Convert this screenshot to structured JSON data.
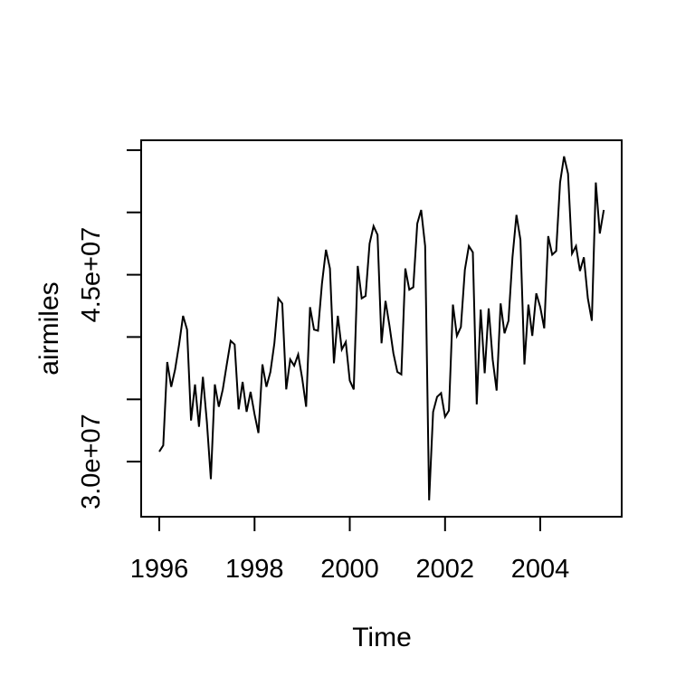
{
  "chart_data": {
    "type": "line",
    "title": "",
    "xlabel": "Time",
    "ylabel": "airmiles",
    "series_name": "airmiles",
    "frequency": "monthly",
    "time_start": "1996-01",
    "time_end": "2005-05",
    "x_start_year": 1996,
    "xlim": [
      1995.62,
      2005.71
    ],
    "ylim": [
      25580000,
      55790000
    ],
    "x_tick_values": [
      1996,
      1998,
      2000,
      2002,
      2004
    ],
    "x_tick_labels": [
      "1996",
      "1998",
      "2000",
      "2002",
      "2004"
    ],
    "y_tick_values": [
      30000000,
      35000000,
      40000000,
      45000000,
      50000000,
      55000000
    ],
    "y_labeled_ticks": [
      {
        "value": 45000000,
        "label": "4.5e+07"
      },
      {
        "value": 30000000,
        "label": "3.0e+07"
      }
    ],
    "grid": false,
    "legend": "none",
    "line_color": "#000000",
    "background": "#ffffff",
    "values": [
      30800000,
      31300000,
      38000000,
      36000000,
      37400000,
      39400000,
      41700000,
      40600000,
      33300000,
      36200000,
      32800000,
      36800000,
      33200000,
      28600000,
      36200000,
      34400000,
      35800000,
      37800000,
      39700000,
      39400000,
      34200000,
      36400000,
      34000000,
      35600000,
      33800000,
      32300000,
      37800000,
      36000000,
      37200000,
      39500000,
      43100000,
      42700000,
      35800000,
      38200000,
      37700000,
      38600000,
      36700000,
      34400000,
      42400000,
      40600000,
      40500000,
      44300000,
      47000000,
      45500000,
      37900000,
      41700000,
      39000000,
      39600000,
      36500000,
      35800000,
      45700000,
      43100000,
      43300000,
      47500000,
      48900000,
      48200000,
      39500000,
      42900000,
      40900000,
      38700000,
      37200000,
      37000000,
      45500000,
      43800000,
      44000000,
      49100000,
      50200000,
      47300000,
      26900000,
      34000000,
      35200000,
      35500000,
      33600000,
      34100000,
      42600000,
      40100000,
      40800000,
      45400000,
      47300000,
      46800000,
      34600000,
      42200000,
      37100000,
      42300000,
      38200000,
      35700000,
      42700000,
      40300000,
      41300000,
      46400000,
      49800000,
      47800000,
      37800000,
      42600000,
      40100000,
      43500000,
      42400000,
      40700000,
      48100000,
      46600000,
      46900000,
      52400000,
      54500000,
      53100000,
      46700000,
      47300000,
      45300000,
      46400000,
      43100000,
      41300000,
      52400000,
      48300000,
      50200000
    ]
  }
}
